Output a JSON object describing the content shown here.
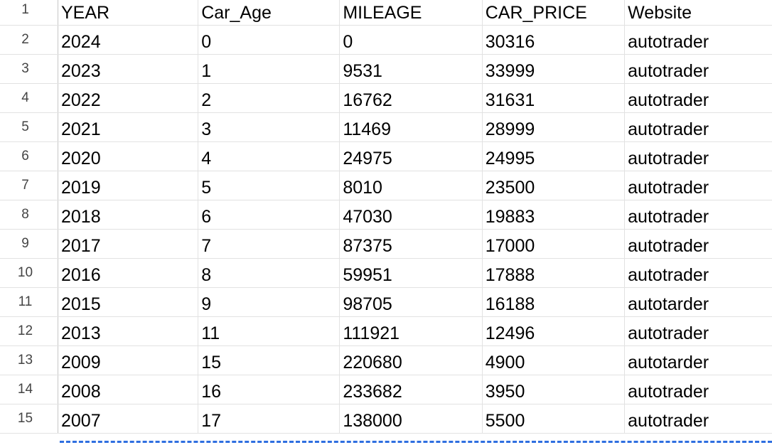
{
  "sheet": {
    "row_numbers": [
      "1",
      "2",
      "3",
      "4",
      "5",
      "6",
      "7",
      "8",
      "9",
      "10",
      "11",
      "12",
      "13",
      "14",
      "15"
    ],
    "header": [
      "YEAR",
      "Car_Age",
      "MILEAGE",
      "CAR_PRICE",
      "Website"
    ],
    "rows": [
      [
        "2024",
        "0",
        "0",
        "30316",
        "autotrader"
      ],
      [
        "2023",
        "1",
        "9531",
        "33999",
        "autotrader"
      ],
      [
        "2022",
        "2",
        "16762",
        "31631",
        "autotrader"
      ],
      [
        "2021",
        "3",
        "11469",
        "28999",
        "autotrader"
      ],
      [
        "2020",
        "4",
        "24975",
        "24995",
        "autotrader"
      ],
      [
        "2019",
        "5",
        "8010",
        "23500",
        "autotrader"
      ],
      [
        "2018",
        "6",
        "47030",
        "19883",
        "autotrader"
      ],
      [
        "2017",
        "7",
        "87375",
        "17000",
        "autotrader"
      ],
      [
        "2016",
        "8",
        "59951",
        "17888",
        "autotrader"
      ],
      [
        "2015",
        "9",
        "98705",
        "16188",
        "autotarder"
      ],
      [
        "2013",
        "11",
        "111921",
        "12496",
        "autotrader"
      ],
      [
        "2009",
        "15",
        "220680",
        "4900",
        "autotarder"
      ],
      [
        "2008",
        "16",
        "233682",
        "3950",
        "autotrader"
      ],
      [
        "2007",
        "17",
        "138000",
        "5500",
        "autotrader"
      ]
    ],
    "colors": {
      "gridline": "#e2e2e2",
      "row_header_border": "#c7c7c7",
      "row_number_text": "#444444",
      "cell_text": "#000000",
      "copy_selection_border": "#2f6fe0"
    }
  }
}
